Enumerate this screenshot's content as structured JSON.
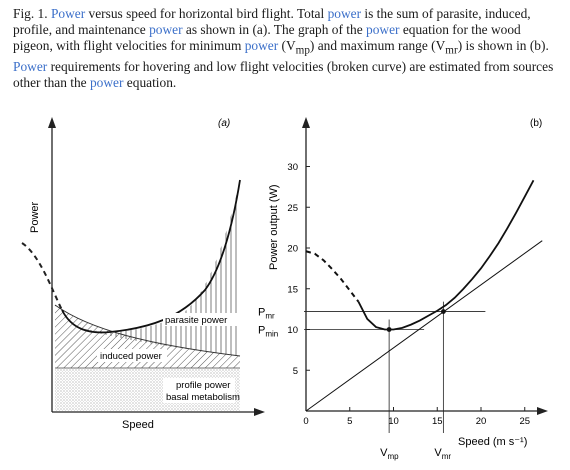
{
  "caption": {
    "s1": "Fig. 1. ",
    "s2": "Power",
    "s3": " versus speed for horizontal bird flight. Total ",
    "s4": "power",
    "s5": " is the sum of parasite, induced, profile, and maintenance ",
    "s6": "power",
    "s7": " as shown in (a). The graph of the ",
    "s8": "power",
    "s9": " equation for the wood pigeon, with flight velocities for minimum ",
    "s10": "power",
    "s11": " (V",
    "s12": "mp",
    "s13": ") and maximum range (V",
    "s14": "mr",
    "s15": ") is shown in (b). ",
    "s16": "Power",
    "s17": " requirements for hovering and low flight velocities (broken curve) are estimated from sources other than the ",
    "s18": "power",
    "s19": " equation.",
    "highlight_color": "#3b6fc9"
  },
  "chart_data": [
    {
      "type": "area",
      "panel_label": "(a)",
      "xlabel": "Speed",
      "ylabel": "Power",
      "annotations": [
        "parasite power",
        "induced power",
        "profile power",
        "basal metabolism"
      ],
      "note": "schematic; no numeric axes"
    },
    {
      "type": "line",
      "panel_label": "(b)",
      "xlabel": "Speed (m s⁻¹)",
      "ylabel": "Power output (W)",
      "xlim": [
        0,
        27
      ],
      "ylim": [
        0,
        35
      ],
      "x_ticks": [
        0,
        5,
        10,
        15,
        20,
        25
      ],
      "y_ticks": [
        5,
        10,
        15,
        20,
        25,
        30
      ],
      "series": [
        {
          "style": "solid",
          "x": [
            6,
            7,
            8,
            9,
            10,
            11,
            12,
            13,
            14,
            15,
            16,
            17,
            18,
            19,
            20,
            21,
            22,
            23,
            24,
            25,
            26
          ],
          "y": [
            13.4,
            11.3,
            10.3,
            10.0,
            10.0,
            10.2,
            10.6,
            11.1,
            11.7,
            12.3,
            13.0,
            13.9,
            15.0,
            16.2,
            17.5,
            19.0,
            20.6,
            22.4,
            24.3,
            26.3,
            28.3
          ]
        },
        {
          "style": "dashed",
          "x": [
            0,
            1,
            2,
            3,
            4,
            5,
            6
          ],
          "y": [
            19.6,
            19.3,
            18.5,
            17.4,
            16.2,
            14.8,
            13.4
          ]
        },
        {
          "style": "tangent-line",
          "x": [
            0,
            27
          ],
          "y": [
            0,
            20.9
          ]
        }
      ],
      "markers": [
        {
          "label_main": "V",
          "label_sub": "mp",
          "x": 9.5,
          "y": 10.0
        },
        {
          "label_main": "V",
          "label_sub": "mr",
          "x": 15.7,
          "y": 12.2
        }
      ],
      "y_markers": [
        {
          "label_main": "P",
          "label_sub": "mr",
          "y": 12.2
        },
        {
          "label_main": "P",
          "label_sub": "min",
          "y": 10.0
        }
      ]
    }
  ]
}
